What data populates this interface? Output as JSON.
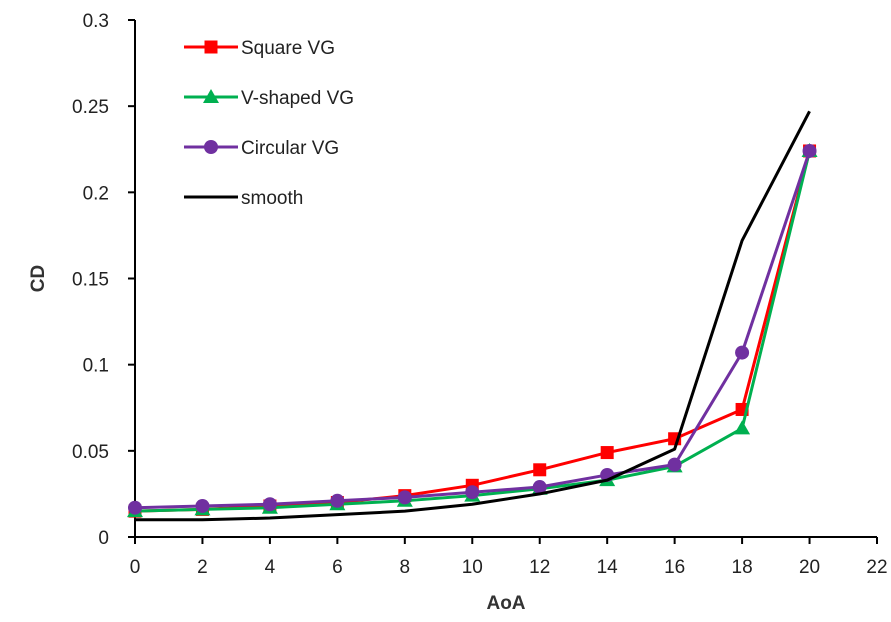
{
  "chart_data": {
    "type": "line",
    "xlabel": "AoA",
    "ylabel": "CD",
    "xlim": [
      0,
      22
    ],
    "ylim": [
      0,
      0.3
    ],
    "x_ticks": [
      "0",
      "2",
      "4",
      "6",
      "8",
      "10",
      "12",
      "14",
      "16",
      "18",
      "20",
      "22"
    ],
    "y_ticks": [
      "0",
      "0.05",
      "0.1",
      "0.15",
      "0.2",
      "0.25",
      "0.3"
    ],
    "grid": false,
    "legend_position": "top-left",
    "x": [
      0,
      2,
      4,
      6,
      8,
      10,
      12,
      14,
      16,
      18,
      20
    ],
    "series": [
      {
        "name": "Square VG",
        "color": "#ff0000",
        "marker": "square",
        "values": [
          0.015,
          0.016,
          0.018,
          0.02,
          0.024,
          0.03,
          0.039,
          0.049,
          0.057,
          0.074,
          0.224
        ]
      },
      {
        "name": "V-shaped  VG",
        "color": "#00b050",
        "marker": "triangle",
        "values": [
          0.015,
          0.016,
          0.017,
          0.019,
          0.021,
          0.024,
          0.028,
          0.033,
          0.041,
          0.063,
          0.224
        ]
      },
      {
        "name": "Circular VG",
        "color": "#7030a0",
        "marker": "circle",
        "values": [
          0.017,
          0.018,
          0.019,
          0.021,
          0.023,
          0.026,
          0.029,
          0.036,
          0.042,
          0.107,
          0.224
        ]
      },
      {
        "name": "smooth",
        "color": "#000000",
        "marker": "none",
        "values": [
          0.01,
          0.01,
          0.011,
          0.013,
          0.015,
          0.019,
          0.025,
          0.033,
          0.051,
          0.172,
          0.247
        ]
      }
    ]
  }
}
